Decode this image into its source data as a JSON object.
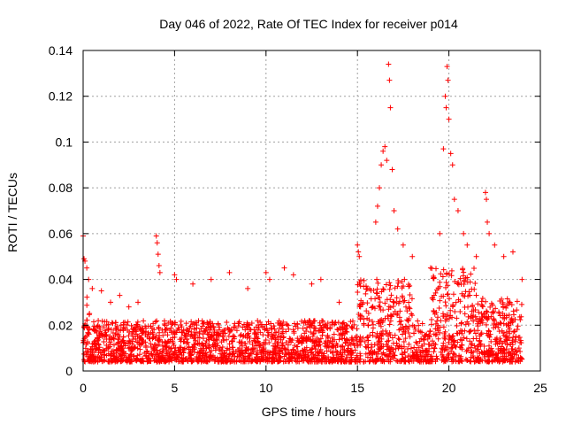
{
  "chart_data": {
    "type": "scatter",
    "title": "Day 046 of 2022, Rate Of TEC Index for receiver p014",
    "xlabel": "GPS time / hours",
    "ylabel": "ROTI / TECUs",
    "xlim": [
      0,
      25
    ],
    "ylim": [
      0,
      0.14
    ],
    "xticks": [
      "0",
      "5",
      "10",
      "15",
      "20",
      "25"
    ],
    "yticks": [
      "0",
      "0.02",
      "0.04",
      "0.06",
      "0.08",
      "0.1",
      "0.12",
      "0.14"
    ],
    "grid": true,
    "marker": "+",
    "color": "#ff0000",
    "series": [
      {
        "name": "ROTI",
        "points": [
          [
            0.0,
            0.059
          ],
          [
            0.05,
            0.049
          ],
          [
            0.1,
            0.048
          ],
          [
            0.2,
            0.045
          ],
          [
            0.3,
            0.04
          ],
          [
            0.5,
            0.036
          ],
          [
            1.0,
            0.035
          ],
          [
            1.5,
            0.03
          ],
          [
            2.0,
            0.033
          ],
          [
            2.5,
            0.028
          ],
          [
            3.0,
            0.03
          ],
          [
            4.0,
            0.059
          ],
          [
            4.05,
            0.056
          ],
          [
            4.1,
            0.051
          ],
          [
            4.15,
            0.046
          ],
          [
            4.2,
            0.043
          ],
          [
            5.0,
            0.042
          ],
          [
            5.1,
            0.04
          ],
          [
            6.0,
            0.038
          ],
          [
            7.0,
            0.04
          ],
          [
            8.0,
            0.043
          ],
          [
            9.0,
            0.036
          ],
          [
            10.0,
            0.043
          ],
          [
            10.2,
            0.04
          ],
          [
            11.0,
            0.045
          ],
          [
            11.5,
            0.042
          ],
          [
            12.5,
            0.038
          ],
          [
            13.0,
            0.04
          ],
          [
            14.0,
            0.03
          ],
          [
            15.0,
            0.055
          ],
          [
            15.05,
            0.052
          ],
          [
            15.1,
            0.05
          ],
          [
            16.0,
            0.065
          ],
          [
            16.1,
            0.072
          ],
          [
            16.2,
            0.08
          ],
          [
            16.3,
            0.09
          ],
          [
            16.4,
            0.096
          ],
          [
            16.5,
            0.098
          ],
          [
            16.6,
            0.092
          ],
          [
            16.7,
            0.134
          ],
          [
            16.75,
            0.127
          ],
          [
            16.8,
            0.115
          ],
          [
            16.9,
            0.088
          ],
          [
            17.0,
            0.07
          ],
          [
            17.2,
            0.062
          ],
          [
            17.5,
            0.055
          ],
          [
            18.0,
            0.05
          ],
          [
            19.0,
            0.045
          ],
          [
            19.5,
            0.06
          ],
          [
            19.7,
            0.097
          ],
          [
            19.8,
            0.12
          ],
          [
            19.85,
            0.115
          ],
          [
            19.9,
            0.133
          ],
          [
            19.95,
            0.127
          ],
          [
            20.0,
            0.11
          ],
          [
            20.1,
            0.095
          ],
          [
            20.2,
            0.09
          ],
          [
            20.3,
            0.075
          ],
          [
            20.5,
            0.07
          ],
          [
            20.8,
            0.06
          ],
          [
            21.0,
            0.055
          ],
          [
            21.5,
            0.05
          ],
          [
            22.0,
            0.078
          ],
          [
            22.05,
            0.075
          ],
          [
            22.1,
            0.065
          ],
          [
            22.2,
            0.06
          ],
          [
            22.5,
            0.055
          ],
          [
            23.0,
            0.05
          ],
          [
            23.5,
            0.052
          ],
          [
            24.0,
            0.04
          ]
        ]
      }
    ]
  }
}
